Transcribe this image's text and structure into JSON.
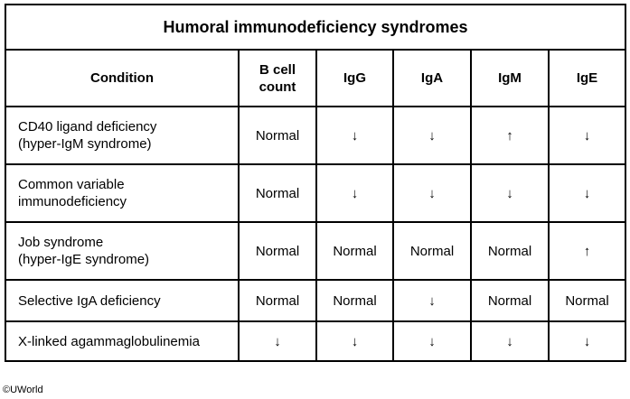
{
  "table": {
    "title": "Humoral immunodeficiency syndromes",
    "header": [
      "Condition",
      "B cell\ncount",
      "IgG",
      "IgA",
      "IgM",
      "IgE"
    ],
    "rows": [
      [
        "CD40 ligand deficiency\n(hyper-IgM syndrome)",
        "Normal",
        "↓",
        "↓",
        "↑",
        "↓"
      ],
      [
        "Common variable\nimmunodeficiency",
        "Normal",
        "↓",
        "↓",
        "↓",
        "↓"
      ],
      [
        "Job syndrome\n(hyper-IgE syndrome)",
        "Normal",
        "Normal",
        "Normal",
        "Normal",
        "↑"
      ],
      [
        "Selective IgA deficiency",
        "Normal",
        "Normal",
        "↓",
        "Normal",
        "Normal"
      ],
      [
        "X-linked agammaglobulinemia",
        "↓",
        "↓",
        "↓",
        "↓",
        "↓"
      ]
    ]
  },
  "footer": "©UWorld"
}
